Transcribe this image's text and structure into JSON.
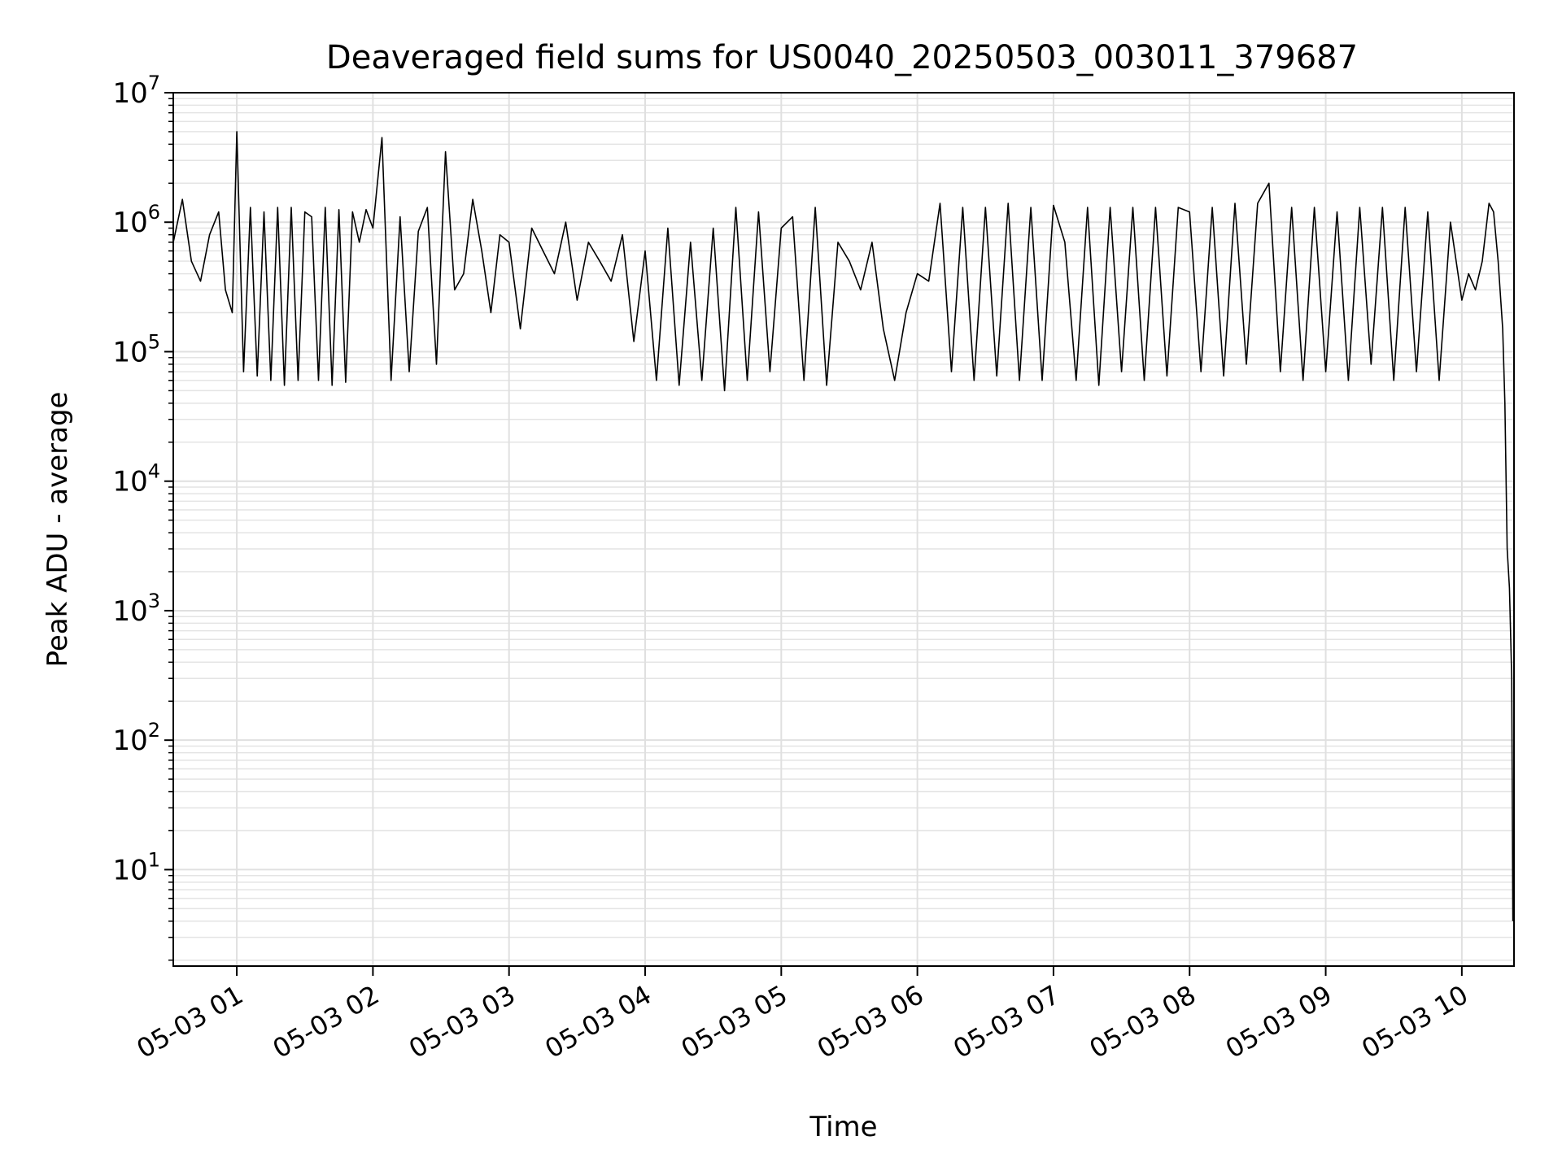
{
  "chart_data": {
    "type": "line",
    "title": "Deaveraged field sums for US0040_20250503_003011_379687",
    "xlabel": "Time",
    "ylabel": "Peak ADU - average",
    "y_scale": "log",
    "ylim": [
      1.8,
      10000000
    ],
    "xlim": [
      "2025-05-03T00:32:00",
      "2025-05-03T10:23:00"
    ],
    "grid": "both (major and minor)",
    "x_ticks": [
      {
        "t": "2025-05-03T01:00:00",
        "label": "05-03 01"
      },
      {
        "t": "2025-05-03T02:00:00",
        "label": "05-03 02"
      },
      {
        "t": "2025-05-03T03:00:00",
        "label": "05-03 03"
      },
      {
        "t": "2025-05-03T04:00:00",
        "label": "05-03 04"
      },
      {
        "t": "2025-05-03T05:00:00",
        "label": "05-03 05"
      },
      {
        "t": "2025-05-03T06:00:00",
        "label": "05-03 06"
      },
      {
        "t": "2025-05-03T07:00:00",
        "label": "05-03 07"
      },
      {
        "t": "2025-05-03T08:00:00",
        "label": "05-03 08"
      },
      {
        "t": "2025-05-03T09:00:00",
        "label": "05-03 09"
      },
      {
        "t": "2025-05-03T10:00:00",
        "label": "05-03 10"
      }
    ],
    "y_ticks": [
      {
        "v": 10,
        "base": "10",
        "exp": "1"
      },
      {
        "v": 100,
        "base": "10",
        "exp": "2"
      },
      {
        "v": 1000,
        "base": "10",
        "exp": "3"
      },
      {
        "v": 10000,
        "base": "10",
        "exp": "4"
      },
      {
        "v": 100000,
        "base": "10",
        "exp": "5"
      },
      {
        "v": 1000000,
        "base": "10",
        "exp": "6"
      },
      {
        "v": 10000000,
        "base": "10",
        "exp": "7"
      }
    ],
    "series": [
      {
        "color": "#000000",
        "x": [
          "2025-05-03T00:32:00",
          "2025-05-03T00:36:00",
          "2025-05-03T00:40:00",
          "2025-05-03T00:44:00",
          "2025-05-03T00:48:00",
          "2025-05-03T00:52:00",
          "2025-05-03T00:55:00",
          "2025-05-03T00:58:00",
          "2025-05-03T01:00:00",
          "2025-05-03T01:03:00",
          "2025-05-03T01:06:00",
          "2025-05-03T01:09:00",
          "2025-05-03T01:12:00",
          "2025-05-03T01:15:00",
          "2025-05-03T01:18:00",
          "2025-05-03T01:21:00",
          "2025-05-03T01:24:00",
          "2025-05-03T01:27:00",
          "2025-05-03T01:30:00",
          "2025-05-03T01:33:00",
          "2025-05-03T01:36:00",
          "2025-05-03T01:39:00",
          "2025-05-03T01:42:00",
          "2025-05-03T01:45:00",
          "2025-05-03T01:48:00",
          "2025-05-03T01:51:00",
          "2025-05-03T01:54:00",
          "2025-05-03T01:57:00",
          "2025-05-03T02:00:00",
          "2025-05-03T02:04:00",
          "2025-05-03T02:08:00",
          "2025-05-03T02:12:00",
          "2025-05-03T02:16:00",
          "2025-05-03T02:20:00",
          "2025-05-03T02:24:00",
          "2025-05-03T02:28:00",
          "2025-05-03T02:32:00",
          "2025-05-03T02:36:00",
          "2025-05-03T02:40:00",
          "2025-05-03T02:44:00",
          "2025-05-03T02:48:00",
          "2025-05-03T02:52:00",
          "2025-05-03T02:56:00",
          "2025-05-03T03:00:00",
          "2025-05-03T03:05:00",
          "2025-05-03T03:10:00",
          "2025-05-03T03:15:00",
          "2025-05-03T03:20:00",
          "2025-05-03T03:25:00",
          "2025-05-03T03:30:00",
          "2025-05-03T03:35:00",
          "2025-05-03T03:40:00",
          "2025-05-03T03:45:00",
          "2025-05-03T03:50:00",
          "2025-05-03T03:55:00",
          "2025-05-03T04:00:00",
          "2025-05-03T04:05:00",
          "2025-05-03T04:10:00",
          "2025-05-03T04:15:00",
          "2025-05-03T04:20:00",
          "2025-05-03T04:25:00",
          "2025-05-03T04:30:00",
          "2025-05-03T04:35:00",
          "2025-05-03T04:40:00",
          "2025-05-03T04:45:00",
          "2025-05-03T04:50:00",
          "2025-05-03T04:55:00",
          "2025-05-03T05:00:00",
          "2025-05-03T05:05:00",
          "2025-05-03T05:10:00",
          "2025-05-03T05:15:00",
          "2025-05-03T05:20:00",
          "2025-05-03T05:25:00",
          "2025-05-03T05:30:00",
          "2025-05-03T05:35:00",
          "2025-05-03T05:40:00",
          "2025-05-03T05:45:00",
          "2025-05-03T05:50:00",
          "2025-05-03T05:55:00",
          "2025-05-03T06:00:00",
          "2025-05-03T06:05:00",
          "2025-05-03T06:10:00",
          "2025-05-03T06:15:00",
          "2025-05-03T06:20:00",
          "2025-05-03T06:25:00",
          "2025-05-03T06:30:00",
          "2025-05-03T06:35:00",
          "2025-05-03T06:40:00",
          "2025-05-03T06:45:00",
          "2025-05-03T06:50:00",
          "2025-05-03T06:55:00",
          "2025-05-03T07:00:00",
          "2025-05-03T07:05:00",
          "2025-05-03T07:10:00",
          "2025-05-03T07:15:00",
          "2025-05-03T07:20:00",
          "2025-05-03T07:25:00",
          "2025-05-03T07:30:00",
          "2025-05-03T07:35:00",
          "2025-05-03T07:40:00",
          "2025-05-03T07:45:00",
          "2025-05-03T07:50:00",
          "2025-05-03T07:55:00",
          "2025-05-03T08:00:00",
          "2025-05-03T08:05:00",
          "2025-05-03T08:10:00",
          "2025-05-03T08:15:00",
          "2025-05-03T08:20:00",
          "2025-05-03T08:25:00",
          "2025-05-03T08:30:00",
          "2025-05-03T08:35:00",
          "2025-05-03T08:40:00",
          "2025-05-03T08:45:00",
          "2025-05-03T08:50:00",
          "2025-05-03T08:55:00",
          "2025-05-03T09:00:00",
          "2025-05-03T09:05:00",
          "2025-05-03T09:10:00",
          "2025-05-03T09:15:00",
          "2025-05-03T09:20:00",
          "2025-05-03T09:25:00",
          "2025-05-03T09:30:00",
          "2025-05-03T09:35:00",
          "2025-05-03T09:40:00",
          "2025-05-03T09:45:00",
          "2025-05-03T09:50:00",
          "2025-05-03T09:55:00",
          "2025-05-03T10:00:00",
          "2025-05-03T10:03:00",
          "2025-05-03T10:06:00",
          "2025-05-03T10:09:00",
          "2025-05-03T10:12:00",
          "2025-05-03T10:14:00",
          "2025-05-03T10:16:00",
          "2025-05-03T10:18:00",
          "2025-05-03T10:19:00",
          "2025-05-03T10:20:00",
          "2025-05-03T10:21:00",
          "2025-05-03T10:22:00",
          "2025-05-03T10:22:30"
        ],
        "y": [
          700000,
          1500000,
          500000,
          350000,
          800000,
          1200000,
          300000,
          200000,
          5000000,
          70000,
          1300000,
          65000,
          1200000,
          60000,
          1300000,
          55000,
          1300000,
          60000,
          1200000,
          1100000,
          60000,
          1300000,
          55000,
          1250000,
          58000,
          1200000,
          700000,
          1250000,
          900000,
          4500000,
          60000,
          1100000,
          70000,
          850000,
          1300000,
          80000,
          3500000,
          300000,
          400000,
          1500000,
          600000,
          200000,
          800000,
          700000,
          150000,
          900000,
          600000,
          400000,
          1000000,
          250000,
          700000,
          500000,
          350000,
          800000,
          120000,
          600000,
          60000,
          900000,
          55000,
          700000,
          60000,
          900000,
          50000,
          1300000,
          60000,
          1200000,
          70000,
          900000,
          1100000,
          60000,
          1300000,
          55000,
          700000,
          500000,
          300000,
          700000,
          150000,
          60000,
          200000,
          400000,
          350000,
          1400000,
          70000,
          1300000,
          60000,
          1300000,
          65000,
          1400000,
          60000,
          1300000,
          60000,
          1350000,
          700000,
          60000,
          1300000,
          55000,
          1300000,
          70000,
          1300000,
          60000,
          1300000,
          65000,
          1300000,
          1200000,
          70000,
          1300000,
          65000,
          1400000,
          80000,
          1400000,
          2000000,
          70000,
          1300000,
          60000,
          1300000,
          70000,
          1200000,
          60000,
          1300000,
          80000,
          1300000,
          60000,
          1300000,
          70000,
          1200000,
          60000,
          1000000,
          250000,
          400000,
          300000,
          500000,
          1400000,
          1200000,
          500000,
          150000,
          40000,
          3000,
          1500,
          300,
          4
        ]
      }
    ]
  }
}
